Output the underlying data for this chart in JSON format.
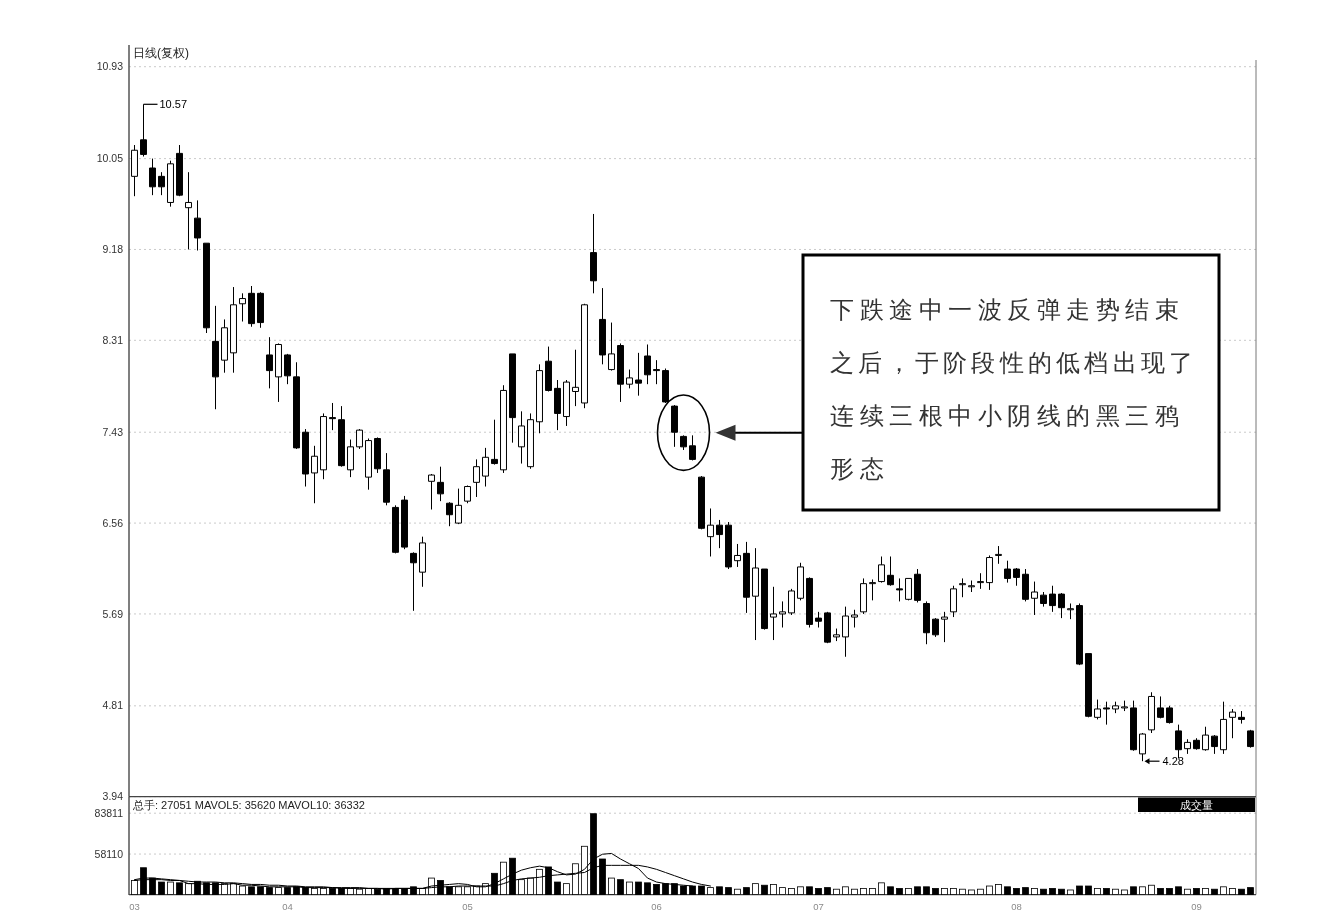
{
  "chart_data": [
    {
      "type": "candlestick",
      "title": "日线(复权)",
      "color": "#000000",
      "categories": [
        null,
        null,
        null,
        null,
        null,
        null,
        null,
        null,
        null,
        null,
        null,
        null,
        null,
        null,
        null,
        null,
        null,
        null,
        null,
        null,
        null,
        null,
        null,
        null,
        null,
        null,
        null,
        null,
        null,
        null,
        null,
        null,
        null,
        null,
        null,
        null,
        null,
        null,
        null,
        null,
        null,
        null,
        null,
        null,
        null,
        null,
        null,
        null,
        null,
        null,
        null,
        null,
        null,
        null,
        null,
        null,
        null,
        null,
        null,
        null,
        null,
        null,
        null,
        null,
        null,
        null,
        null,
        null,
        null,
        null,
        null,
        null,
        null,
        null,
        null,
        null,
        null,
        null,
        null,
        null,
        null,
        null,
        null,
        null,
        null,
        null,
        null,
        null,
        null,
        null,
        null,
        null,
        null,
        null,
        null,
        null,
        null,
        null,
        null,
        null,
        null,
        null,
        null,
        null,
        null,
        null,
        null,
        null,
        null,
        null,
        null,
        null,
        null,
        null,
        null,
        null,
        null,
        null,
        null,
        null,
        null,
        null,
        null,
        null,
        null
      ],
      "ohlc": [
        [
          9.88,
          10.18,
          9.69,
          10.13
        ],
        [
          10.23,
          10.57,
          10.07,
          10.09
        ],
        [
          9.96,
          10.05,
          9.7,
          9.78
        ],
        [
          9.88,
          9.92,
          9.7,
          9.78
        ],
        [
          9.63,
          10.03,
          9.59,
          10.0
        ],
        [
          10.1,
          10.18,
          9.69,
          9.7
        ],
        [
          9.58,
          9.92,
          9.18,
          9.63
        ],
        [
          9.48,
          9.65,
          9.17,
          9.29
        ],
        [
          9.24,
          9.24,
          8.38,
          8.43
        ],
        [
          8.3,
          8.64,
          7.65,
          7.96
        ],
        [
          8.12,
          8.51,
          8.0,
          8.43
        ],
        [
          8.19,
          8.82,
          8.0,
          8.65
        ],
        [
          8.66,
          8.76,
          8.49,
          8.71
        ],
        [
          8.76,
          8.83,
          8.44,
          8.47
        ],
        [
          8.76,
          8.77,
          8.43,
          8.48
        ],
        [
          8.17,
          8.34,
          7.85,
          8.02
        ],
        [
          7.96,
          8.28,
          7.72,
          8.27
        ],
        [
          8.17,
          8.18,
          7.89,
          7.97
        ],
        [
          7.96,
          8.1,
          7.27,
          7.28
        ],
        [
          7.43,
          7.46,
          6.91,
          7.03
        ],
        [
          7.04,
          7.3,
          6.75,
          7.2
        ],
        [
          7.07,
          7.61,
          6.98,
          7.58
        ],
        [
          7.57,
          7.71,
          7.45,
          7.56
        ],
        [
          7.55,
          7.68,
          7.1,
          7.11
        ],
        [
          7.07,
          7.36,
          7.0,
          7.29
        ],
        [
          7.29,
          7.46,
          7.27,
          7.45
        ],
        [
          7.0,
          7.37,
          6.88,
          7.35
        ],
        [
          7.37,
          7.38,
          7.04,
          7.08
        ],
        [
          7.07,
          7.23,
          6.73,
          6.76
        ],
        [
          6.71,
          6.73,
          6.27,
          6.28
        ],
        [
          6.78,
          6.82,
          6.31,
          6.33
        ],
        [
          6.27,
          6.28,
          5.72,
          6.18
        ],
        [
          6.09,
          6.43,
          5.95,
          6.37
        ],
        [
          6.96,
          7.03,
          6.69,
          7.02
        ],
        [
          6.95,
          7.1,
          6.77,
          6.84
        ],
        [
          6.75,
          6.76,
          6.53,
          6.64
        ],
        [
          6.56,
          6.89,
          6.55,
          6.73
        ],
        [
          6.77,
          6.92,
          6.75,
          6.91
        ],
        [
          6.95,
          7.17,
          6.81,
          7.1
        ],
        [
          7.01,
          7.28,
          6.91,
          7.19
        ],
        [
          7.17,
          7.55,
          7.12,
          7.13
        ],
        [
          7.07,
          7.88,
          7.04,
          7.83
        ],
        [
          8.18,
          8.18,
          7.33,
          7.57
        ],
        [
          7.29,
          7.63,
          7.13,
          7.49
        ],
        [
          7.1,
          7.61,
          7.08,
          7.55
        ],
        [
          7.53,
          8.08,
          7.42,
          8.02
        ],
        [
          8.11,
          8.25,
          7.82,
          7.83
        ],
        [
          7.85,
          7.93,
          7.45,
          7.61
        ],
        [
          7.58,
          7.93,
          7.49,
          7.91
        ],
        [
          7.82,
          8.22,
          7.68,
          7.86
        ],
        [
          7.71,
          8.66,
          7.66,
          8.65
        ],
        [
          9.15,
          9.52,
          8.76,
          8.88
        ],
        [
          8.51,
          8.81,
          8.08,
          8.17
        ],
        [
          8.03,
          8.48,
          8.02,
          8.18
        ],
        [
          8.26,
          8.28,
          7.72,
          7.89
        ],
        [
          7.89,
          8.03,
          7.85,
          7.95
        ],
        [
          7.93,
          8.19,
          7.78,
          7.9
        ],
        [
          8.16,
          8.27,
          7.89,
          7.98
        ],
        [
          8.03,
          8.12,
          7.89,
          8.02
        ],
        [
          8.02,
          8.04,
          7.71,
          7.72
        ],
        [
          7.68,
          7.69,
          7.29,
          7.43
        ],
        [
          7.39,
          7.4,
          7.26,
          7.29
        ],
        [
          7.3,
          7.4,
          7.16,
          7.17
        ],
        [
          7.0,
          7.01,
          6.5,
          6.51
        ],
        [
          6.43,
          6.7,
          6.24,
          6.54
        ],
        [
          6.54,
          6.59,
          6.32,
          6.45
        ],
        [
          6.54,
          6.57,
          6.12,
          6.14
        ],
        [
          6.2,
          6.36,
          6.14,
          6.25
        ],
        [
          6.27,
          6.38,
          5.7,
          5.85
        ],
        [
          5.86,
          6.32,
          5.44,
          6.13
        ],
        [
          6.12,
          6.12,
          5.54,
          5.55
        ],
        [
          5.66,
          5.95,
          5.44,
          5.69
        ],
        [
          5.69,
          5.81,
          5.56,
          5.71
        ],
        [
          5.7,
          5.93,
          5.68,
          5.91
        ],
        [
          5.84,
          6.18,
          5.82,
          6.14
        ],
        [
          6.03,
          6.04,
          5.56,
          5.59
        ],
        [
          5.65,
          5.71,
          5.56,
          5.62
        ],
        [
          5.7,
          5.71,
          5.41,
          5.42
        ],
        [
          5.47,
          5.55,
          5.43,
          5.49
        ],
        [
          5.47,
          5.76,
          5.28,
          5.67
        ],
        [
          5.66,
          5.73,
          5.56,
          5.68
        ],
        [
          5.71,
          6.03,
          5.69,
          5.98
        ],
        [
          5.98,
          6.02,
          5.82,
          5.99
        ],
        [
          6.0,
          6.24,
          5.99,
          6.16
        ],
        [
          6.06,
          6.24,
          5.96,
          5.97
        ],
        [
          5.93,
          6.03,
          5.81,
          5.92
        ],
        [
          5.83,
          6.03,
          5.82,
          6.03
        ],
        [
          6.07,
          6.12,
          5.8,
          5.82
        ],
        [
          5.79,
          5.81,
          5.4,
          5.51
        ],
        [
          5.64,
          5.65,
          5.47,
          5.49
        ],
        [
          5.64,
          5.71,
          5.42,
          5.66
        ],
        [
          5.71,
          5.96,
          5.66,
          5.93
        ],
        [
          5.97,
          6.03,
          5.85,
          5.98
        ],
        [
          5.95,
          6.01,
          5.9,
          5.96
        ],
        [
          5.99,
          6.08,
          5.93,
          6.0
        ],
        [
          5.99,
          6.25,
          5.92,
          6.23
        ],
        [
          6.25,
          6.34,
          6.17,
          6.26
        ],
        [
          6.12,
          6.2,
          5.99,
          6.03
        ],
        [
          6.12,
          6.13,
          5.96,
          6.04
        ],
        [
          6.07,
          6.12,
          5.81,
          5.83
        ],
        [
          5.84,
          6.0,
          5.68,
          5.9
        ],
        [
          5.87,
          5.9,
          5.76,
          5.79
        ],
        [
          5.88,
          5.96,
          5.71,
          5.77
        ],
        [
          5.88,
          5.89,
          5.65,
          5.75
        ],
        [
          5.73,
          5.79,
          5.64,
          5.74
        ],
        [
          5.77,
          5.79,
          5.2,
          5.21
        ],
        [
          5.31,
          5.31,
          4.7,
          4.71
        ],
        [
          4.7,
          4.87,
          4.68,
          4.78
        ],
        [
          4.79,
          4.85,
          4.63,
          4.78
        ],
        [
          4.78,
          4.85,
          4.74,
          4.81
        ],
        [
          4.79,
          4.86,
          4.76,
          4.8
        ],
        [
          4.79,
          4.86,
          4.38,
          4.39
        ],
        [
          4.35,
          4.55,
          4.28,
          4.54
        ],
        [
          4.58,
          4.94,
          4.55,
          4.9
        ],
        [
          4.79,
          4.9,
          4.69,
          4.7
        ],
        [
          4.79,
          4.81,
          4.64,
          4.65
        ],
        [
          4.57,
          4.63,
          4.31,
          4.39
        ],
        [
          4.4,
          4.49,
          4.35,
          4.46
        ],
        [
          4.48,
          4.5,
          4.39,
          4.4
        ],
        [
          4.39,
          4.61,
          4.38,
          4.53
        ],
        [
          4.52,
          4.53,
          4.35,
          4.42
        ],
        [
          4.39,
          4.85,
          4.35,
          4.68
        ],
        [
          4.7,
          4.78,
          4.5,
          4.75
        ],
        [
          4.7,
          4.76,
          4.64,
          4.68
        ],
        [
          4.57,
          4.58,
          4.41,
          4.42
        ]
      ],
      "ylim": [
        3.94,
        10.93
      ],
      "yticks": [
        3.94,
        4.81,
        5.69,
        6.56,
        7.43,
        8.31,
        9.18,
        10.05,
        10.93
      ],
      "grid": "y",
      "annotations": [
        "10.57",
        "4.28",
        "下跌途中一波反弹走势结束之后，于阶段性的低档出现了连续三根中小阴线的黑三鸦形态"
      ]
    },
    {
      "type": "bar",
      "title": "总手: 27051 MAVOL5: 35620 MAVOL10: 36332",
      "categories": [
        "03",
        null,
        null,
        null,
        null,
        null,
        null,
        null,
        null,
        null,
        null,
        null,
        null,
        null,
        null,
        null,
        null,
        "04",
        null,
        null,
        null,
        null,
        null,
        null,
        null,
        null,
        null,
        null,
        null,
        null,
        null,
        null,
        null,
        null,
        null,
        null,
        null,
        "05",
        null,
        null,
        null,
        null,
        null,
        null,
        null,
        null,
        null,
        null,
        null,
        null,
        null,
        null,
        null,
        null,
        null,
        null,
        null,
        null,
        "06",
        null,
        null,
        null,
        null,
        null,
        null,
        null,
        null,
        null,
        null,
        null,
        null,
        null,
        null,
        null,
        null,
        null,
        "07",
        null,
        null,
        null,
        null,
        null,
        null,
        null,
        null,
        null,
        null,
        null,
        null,
        null,
        null,
        null,
        null,
        null,
        null,
        null,
        null,
        null,
        "08",
        null,
        null,
        null,
        null,
        null,
        null,
        null,
        null,
        null,
        null,
        null,
        null,
        null,
        null,
        null,
        null,
        null,
        null,
        null,
        "09",
        null,
        null,
        null,
        null,
        null,
        null
      ],
      "series": [
        {
          "values": [
            41500,
            49500,
            43000,
            40500,
            40500,
            40000,
            39500,
            41000,
            40000,
            40000,
            39500,
            39500,
            38000,
            37500,
            37500,
            37000,
            37000,
            37000,
            37500,
            37000,
            36500,
            36500,
            36500,
            36500,
            36500,
            36000,
            36500,
            36000,
            36500,
            36500,
            36500,
            37500,
            36500,
            43000,
            41500,
            37500,
            37500,
            37500,
            38000,
            39500,
            46000,
            53000,
            55500,
            42000,
            43000,
            48500,
            50000,
            40500,
            39500,
            52000,
            63000,
            83500,
            55000,
            43000,
            42000,
            40500,
            40500,
            40000,
            39000,
            39500,
            39500,
            38000,
            38000,
            38000,
            37000,
            37500,
            37000,
            36000,
            37000,
            39500,
            38500,
            39000,
            37000,
            36500,
            37500,
            37500,
            36500,
            37000,
            36000,
            37500,
            36000,
            36500,
            36500,
            40000,
            37500,
            36500,
            36500,
            37500,
            37500,
            36500,
            36500,
            36500,
            36000,
            35500,
            36000,
            38000,
            39000,
            37500,
            36500,
            37000,
            36500,
            36000,
            36500,
            36000,
            35500,
            38000,
            38000,
            36500,
            36500,
            36000,
            35500,
            37500,
            37500,
            38500,
            36500,
            36500,
            37500,
            36000,
            36500,
            36500,
            36000,
            37500,
            36500,
            36000,
            37000
          ],
          "colors": [
            "#ffffff",
            "#000000",
            "#000000",
            "#000000",
            "#ffffff",
            "#000000",
            "#ffffff",
            "#000000",
            "#000000",
            "#000000",
            "#ffffff",
            "#ffffff",
            "#ffffff",
            "#000000",
            "#000000",
            "#000000",
            "#ffffff",
            "#000000",
            "#000000",
            "#000000",
            "#ffffff",
            "#ffffff",
            "#000000",
            "#000000",
            "#ffffff",
            "#ffffff",
            "#ffffff",
            "#000000",
            "#000000",
            "#000000",
            "#000000",
            "#000000",
            "#ffffff",
            "#ffffff",
            "#000000",
            "#000000",
            "#ffffff",
            "#ffffff",
            "#ffffff",
            "#ffffff",
            "#000000",
            "#ffffff",
            "#000000",
            "#ffffff",
            "#ffffff",
            "#ffffff",
            "#000000",
            "#000000",
            "#ffffff",
            "#ffffff",
            "#ffffff",
            "#000000",
            "#000000",
            "#ffffff",
            "#000000",
            "#ffffff",
            "#000000",
            "#000000",
            "#000000",
            "#000000",
            "#000000",
            "#000000",
            "#000000",
            "#000000",
            "#ffffff",
            "#000000",
            "#000000",
            "#ffffff",
            "#000000",
            "#ffffff",
            "#000000",
            "#ffffff",
            "#ffffff",
            "#ffffff",
            "#ffffff",
            "#000000",
            "#000000",
            "#000000",
            "#ffffff",
            "#ffffff",
            "#ffffff",
            "#ffffff",
            "#ffffff",
            "#ffffff",
            "#000000",
            "#000000",
            "#ffffff",
            "#000000",
            "#000000",
            "#000000",
            "#ffffff",
            "#ffffff",
            "#ffffff",
            "#ffffff",
            "#ffffff",
            "#ffffff",
            "#ffffff",
            "#000000",
            "#000000",
            "#000000",
            "#ffffff",
            "#000000",
            "#000000",
            "#000000",
            "#ffffff",
            "#000000",
            "#000000",
            "#ffffff",
            "#000000",
            "#ffffff",
            "#ffffff",
            "#000000",
            "#ffffff",
            "#ffffff",
            "#000000",
            "#000000",
            "#000000",
            "#ffffff",
            "#000000",
            "#ffffff",
            "#000000",
            "#ffffff",
            "#ffffff",
            "#000000",
            "#000000"
          ]
        },
        {
          "type": "line",
          "color": "#000000",
          "values": [
            42000,
            43000,
            43000,
            42500,
            42000,
            41500,
            39500,
            39500,
            39000,
            39000,
            39000,
            39500,
            38500,
            38500,
            38000,
            37500,
            37500,
            37500,
            37500,
            37000,
            37000,
            37000,
            37000,
            36500,
            36500,
            36500,
            36500,
            36500,
            36000,
            36500,
            36500,
            36500,
            36500,
            38000,
            38500,
            39000,
            39500,
            39000,
            37500,
            37500,
            39500,
            42500,
            45500,
            48000,
            49500,
            50500,
            49500,
            47000,
            45000,
            45500,
            48500,
            55000,
            58000,
            58500,
            55000,
            52000,
            49000,
            43000,
            40500,
            39500,
            39000,
            38500,
            38000,
            null,
            null,
            null,
            null,
            null,
            null,
            null,
            null,
            null,
            null,
            null,
            null,
            null,
            null,
            null,
            null,
            null,
            null,
            null,
            null,
            null,
            null,
            null,
            null,
            null,
            null,
            null,
            null,
            null,
            null,
            null,
            null,
            null,
            null,
            null,
            null,
            null,
            null,
            null,
            null,
            null,
            null,
            null,
            null,
            null,
            null,
            null,
            null,
            null,
            null,
            null,
            null,
            null,
            null,
            null,
            null,
            null,
            null,
            null,
            null,
            null,
            null
          ]
        },
        {
          "type": "line",
          "color": "#000000",
          "values": [
            41500,
            42000,
            42000,
            42000,
            41500,
            41500,
            41000,
            40500,
            40500,
            40500,
            40000,
            40000,
            39500,
            39000,
            39000,
            38500,
            38500,
            38000,
            38000,
            37500,
            37500,
            37500,
            37000,
            37000,
            37000,
            37000,
            36500,
            36500,
            36500,
            36500,
            36500,
            36500,
            36500,
            37000,
            37500,
            37500,
            38000,
            38000,
            38000,
            38000,
            38000,
            39500,
            41500,
            42500,
            43000,
            43500,
            44500,
            45000,
            45500,
            46000,
            46500,
            49500,
            51000,
            51000,
            51000,
            51000,
            51000,
            50000,
            48500,
            46500,
            44500,
            42500,
            40500,
            39000,
            38000,
            null,
            null,
            null,
            null,
            null,
            null,
            null,
            null,
            null,
            null,
            null,
            null,
            null,
            null,
            null,
            null,
            null,
            null,
            null,
            null,
            null,
            null,
            null,
            null,
            null,
            null,
            null,
            null,
            null,
            null,
            null,
            null,
            null,
            null,
            null,
            null,
            null,
            null,
            null,
            null,
            null,
            null,
            null,
            null,
            null,
            null,
            null,
            null,
            null,
            null,
            null,
            null,
            null,
            null,
            null,
            null,
            null,
            null,
            null,
            null
          ]
        }
      ],
      "ylim": [
        32600,
        94200
      ],
      "yticks": [
        58110,
        83811
      ],
      "grid": "y",
      "annotations": [
        "成交量"
      ]
    }
  ]
}
